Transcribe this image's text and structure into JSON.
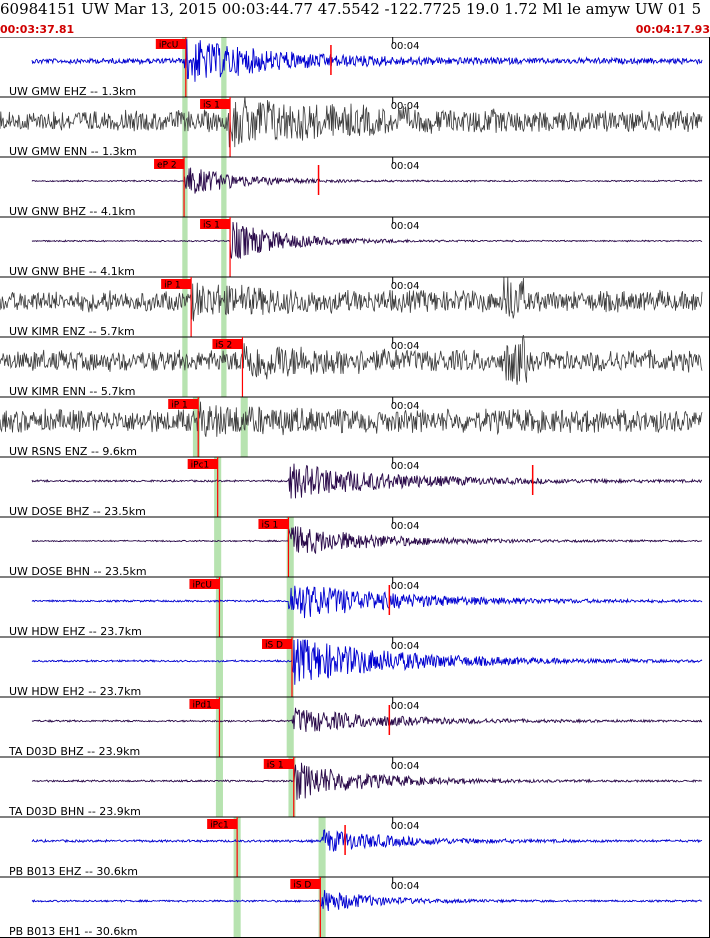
{
  "header": {
    "title": "60984151 UW Mar 13, 2015 00:03:44.77    47.5542 -122.7725 19.0 1.72 Ml le amyw UW 01   5",
    "start_time": "00:03:37.81",
    "end_time": "00:04:17.93"
  },
  "colors": {
    "pick": "#ff0000",
    "window": "#b7e3b0",
    "blue_trace": "#0000d0",
    "purple_trace": "#2a0a4a",
    "gray_trace": "#3c3c3c",
    "border": "#000000"
  },
  "chart_data": {
    "type": "waveform",
    "time_axis": {
      "start": "00:03:37.81",
      "end": "00:04:17.93",
      "tick_label": "00:04"
    },
    "traces": [
      {
        "label": "UW GMW EHZ -- 1.3km",
        "pick": "iPcU",
        "pick_t": 10.5,
        "window_t": [
          10.3,
          10.6,
          12.5,
          12.8
        ],
        "color": "blue",
        "noise": 0.12,
        "amp": 0.85,
        "onset_t": 10.4,
        "decay": 5,
        "marker_t": 18.7
      },
      {
        "label": "UW GMW ENN -- 1.3km",
        "pick": "iS 1",
        "pick_t": 13.0,
        "window_t": [
          10.3,
          10.6,
          12.5,
          12.8
        ],
        "color": "gray",
        "noise": 0.45,
        "amp": 0.75,
        "onset_t": 12.9,
        "decay": 6,
        "marker_t": null
      },
      {
        "label": "UW GNW BHZ -- 4.1km",
        "pick": "eP 2",
        "pick_t": 10.4,
        "window_t": [
          10.3,
          10.6,
          12.5,
          12.8
        ],
        "color": "purple",
        "noise": 0.03,
        "amp": 0.6,
        "onset_t": 10.4,
        "decay": 3,
        "marker_t": 18.0
      },
      {
        "label": "UW GNW BHE -- 4.1km",
        "pick": "iS 1",
        "pick_t": 13.0,
        "window_t": [
          10.3,
          10.6,
          12.5,
          12.8
        ],
        "color": "purple",
        "noise": 0.03,
        "amp": 0.8,
        "onset_t": 13.0,
        "decay": 3,
        "marker_t": null
      },
      {
        "label": "UW KIMR ENZ -- 5.7km",
        "pick": "iP 1",
        "pick_t": 10.8,
        "window_t": [
          10.3,
          10.6,
          12.5,
          12.8
        ],
        "color": "gray",
        "noise": 0.45,
        "amp": 0.4,
        "onset_t": 10.8,
        "decay": 4,
        "marker_t": null,
        "extra_t": 29.0
      },
      {
        "label": "UW KIMR ENN -- 5.7km",
        "pick": "iS 2",
        "pick_t": 13.7,
        "window_t": [
          10.3,
          10.6,
          12.5,
          12.8
        ],
        "color": "gray",
        "noise": 0.45,
        "amp": 0.5,
        "onset_t": 13.7,
        "decay": 4,
        "marker_t": null,
        "extra_t": 29.2
      },
      {
        "label": "UW RSNS ENZ -- 9.6km",
        "pick": "iP 1",
        "pick_t": 11.2,
        "window_t": [
          10.9,
          11.3,
          13.6,
          14.0
        ],
        "color": "gray",
        "noise": 0.5,
        "amp": 0.3,
        "onset_t": 11.2,
        "decay": 4,
        "marker_t": null
      },
      {
        "label": "UW DOSE BHZ -- 23.5km",
        "pick": "iPc1",
        "pick_t": 12.3,
        "window_t": [
          12.1,
          12.5,
          12.5,
          12.5
        ],
        "color": "purple",
        "noise": 0.04,
        "amp": 0.7,
        "onset_t": 16.3,
        "decay": 6,
        "marker_t": 30.1
      },
      {
        "label": "UW DOSE BHN -- 23.5km",
        "pick": "iS 1",
        "pick_t": 16.3,
        "window_t": [
          12.1,
          12.5,
          16.2,
          16.6
        ],
        "color": "purple",
        "noise": 0.03,
        "amp": 0.6,
        "onset_t": 16.3,
        "decay": 5,
        "marker_t": null
      },
      {
        "label": "UW HDW EHZ -- 23.7km",
        "pick": "iPcU",
        "pick_t": 12.4,
        "window_t": [
          12.2,
          12.6,
          16.2,
          16.6
        ],
        "color": "blue",
        "noise": 0.04,
        "amp": 0.75,
        "onset_t": 16.3,
        "decay": 6,
        "marker_t": 22.0
      },
      {
        "label": "UW HDW EH2 -- 23.7km",
        "pick": "iS D",
        "pick_t": 16.5,
        "window_t": [
          12.2,
          12.6,
          16.2,
          16.6
        ],
        "color": "blue",
        "noise": 0.04,
        "amp": 0.9,
        "onset_t": 16.5,
        "decay": 6,
        "marker_t": null
      },
      {
        "label": "TA D03D BHZ -- 23.9km",
        "pick": "iPd1",
        "pick_t": 12.4,
        "window_t": [
          12.2,
          12.6,
          16.2,
          16.6
        ],
        "color": "purple",
        "noise": 0.04,
        "amp": 0.5,
        "onset_t": 16.5,
        "decay": 5,
        "marker_t": 22.0
      },
      {
        "label": "TA D03D BHN -- 23.9km",
        "pick": "iS 1",
        "pick_t": 16.6,
        "window_t": [
          12.2,
          12.6,
          16.3,
          16.7
        ],
        "color": "purple",
        "noise": 0.04,
        "amp": 0.75,
        "onset_t": 16.6,
        "decay": 4,
        "marker_t": null
      },
      {
        "label": "PB B013 EHZ -- 30.6km",
        "pick": "iPc1",
        "pick_t": 13.4,
        "window_t": [
          13.2,
          13.6,
          18.0,
          18.4
        ],
        "color": "blue",
        "noise": 0.05,
        "amp": 0.45,
        "onset_t": 18.2,
        "decay": 4,
        "marker_t": 19.5
      },
      {
        "label": "PB B013 EH1 -- 30.6km",
        "pick": "iS D",
        "pick_t": 18.1,
        "window_t": [
          13.2,
          13.6,
          18.0,
          18.4
        ],
        "color": "blue",
        "noise": 0.04,
        "amp": 0.45,
        "onset_t": 18.1,
        "decay": 3,
        "marker_t": null
      }
    ]
  }
}
